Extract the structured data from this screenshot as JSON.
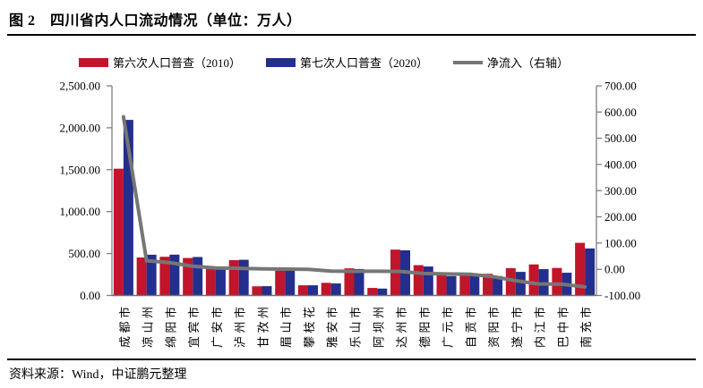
{
  "title": "图 2　四川省内人口流动情况（单位：万人）",
  "source": "资料来源：Wind，中证鹏元整理",
  "legend": {
    "census2010_label": "第六次人口普查（2010）",
    "census2020_label": "第七次人口普查（2020）",
    "net_label": "净流入（右轴）"
  },
  "colors": {
    "census2010": "#C0152A",
    "census2020": "#242E8C",
    "net_line": "#767676",
    "axis": "#808080"
  },
  "chart_data": {
    "type": "bar",
    "title": "四川省内人口流动情况（单位：万人）",
    "categories": [
      "成都市",
      "凉山州",
      "绵阳市",
      "宜宾市",
      "广安市",
      "泸州市",
      "甘孜州",
      "眉山市",
      "攀枝花",
      "雅安市",
      "乐山市",
      "阿坝州",
      "达州市",
      "德阳市",
      "广元市",
      "自贡市",
      "资阳市",
      "遂宁市",
      "内江市",
      "巴中市",
      "南充市"
    ],
    "series": [
      {
        "name": "第六次人口普查（2010）",
        "type": "bar",
        "axis": "left",
        "color": "#C0152A",
        "values": [
          1511.9,
          453.3,
          461.4,
          447.2,
          320.5,
          421.8,
          109.2,
          295.0,
          121.4,
          150.7,
          323.5,
          89.8,
          546.8,
          361.6,
          248.4,
          267.9,
          258.7,
          325.3,
          370.3,
          328.3,
          627.9
        ]
      },
      {
        "name": "第七次人口普查（2020）",
        "type": "bar",
        "axis": "left",
        "color": "#242E8C",
        "values": [
          2093.8,
          485.8,
          486.8,
          458.9,
          325.5,
          425.4,
          110.8,
          295.5,
          121.2,
          143.5,
          315.6,
          82.3,
          538.5,
          345.6,
          230.5,
          248.9,
          230.9,
          281.4,
          314.1,
          271.3,
          560.8
        ]
      },
      {
        "name": "净流入（右轴）",
        "type": "line",
        "axis": "right",
        "color": "#767676",
        "values": [
          581.9,
          32.5,
          25.4,
          11.7,
          5.0,
          3.6,
          1.5,
          0.5,
          -0.2,
          -7.2,
          -7.9,
          -7.5,
          -8.3,
          -15.9,
          -17.9,
          -19.0,
          -27.9,
          -43.8,
          -56.2,
          -57.0,
          -67.1
        ]
      }
    ],
    "left_axis": {
      "min": 0,
      "max": 2500,
      "tick_step": 500,
      "ticks": [
        "0.00",
        "500.00",
        "1,000.00",
        "1,500.00",
        "2,000.00",
        "2,500.00"
      ]
    },
    "right_axis": {
      "min": -100,
      "max": 700,
      "tick_step": 100,
      "ticks": [
        "-100.00",
        "0.00",
        "100.00",
        "200.00",
        "300.00",
        "400.00",
        "500.00",
        "600.00",
        "700.00"
      ]
    },
    "grid": false,
    "legend_position": "top"
  }
}
